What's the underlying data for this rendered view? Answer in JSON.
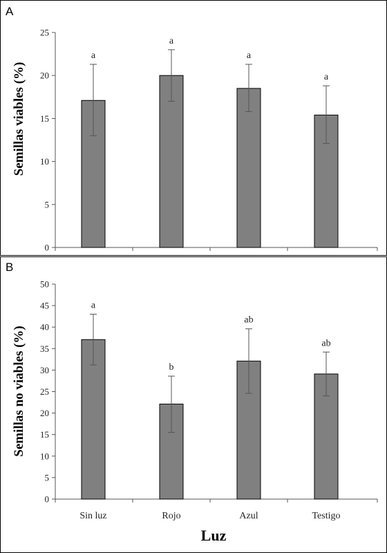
{
  "chart_data": [
    {
      "type": "bar",
      "panel": "A",
      "ylabel": "Semillas viables (%)",
      "xlabel": "",
      "categories": [
        "Sin luz",
        "Rojo",
        "Azul",
        "Testigo"
      ],
      "values": [
        17.1,
        20.0,
        18.5,
        15.4
      ],
      "err_upper": [
        21.3,
        23.0,
        21.3,
        18.8
      ],
      "err_lower": [
        13.0,
        17.0,
        15.8,
        12.1
      ],
      "significance": [
        "a",
        "a",
        "a",
        "a"
      ],
      "ylim": [
        0,
        25
      ],
      "yticks": [
        0,
        5,
        10,
        15,
        20,
        25
      ],
      "show_category_labels": false,
      "grid": false
    },
    {
      "type": "bar",
      "panel": "B",
      "ylabel": "Semillas no viables (%)",
      "xlabel": "Luz",
      "categories": [
        "Sin luz",
        "Rojo",
        "Azul",
        "Testigo"
      ],
      "values": [
        37.1,
        22.1,
        32.1,
        29.1
      ],
      "err_upper": [
        43.0,
        28.6,
        39.6,
        34.2
      ],
      "err_lower": [
        31.2,
        15.5,
        24.6,
        24.0
      ],
      "significance": [
        "a",
        "b",
        "ab",
        "ab"
      ],
      "ylim": [
        0,
        50
      ],
      "yticks": [
        0,
        5,
        10,
        15,
        20,
        25,
        30,
        35,
        40,
        45,
        50
      ],
      "show_category_labels": true,
      "grid": false
    }
  ],
  "colors": {
    "bar_fill": "#808080",
    "bar_stroke": "#000000",
    "error_bar": "#555555"
  }
}
